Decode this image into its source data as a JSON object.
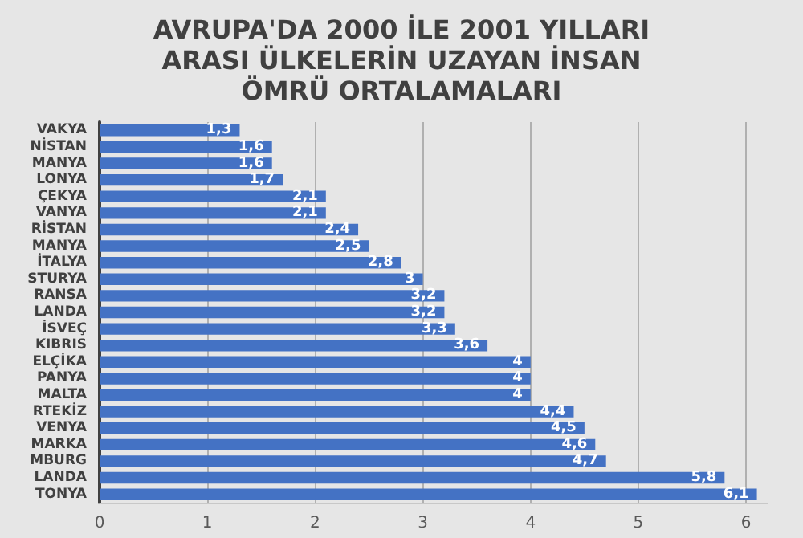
{
  "chart_data": {
    "type": "bar",
    "orientation": "horizontal",
    "title": "AVRUPA'DA 2000 İLE 2001 YILLARI\nARASI ÜLKELERİN UZAYAN İNSAN\nÖMRÜ ORTALAMALARI",
    "categories": [
      "VAKYA",
      "NİSTAN",
      "MANYA",
      "LONYA",
      "ÇEKYA",
      "VANYA",
      "RİSTAN",
      "MANYA",
      "İTALYA",
      "STURYA",
      "RANSA",
      "LANDA",
      "İSVEÇ",
      "KIBRIS",
      "ELÇİKA",
      "PANYA",
      "MALTA",
      "RTEKİZ",
      "VENYA",
      "MARKA",
      "MBURG",
      "LANDA",
      "TONYA"
    ],
    "values": [
      1.3,
      1.6,
      1.6,
      1.7,
      2.1,
      2.1,
      2.4,
      2.5,
      2.8,
      3,
      3.2,
      3.2,
      3.3,
      3.6,
      4,
      4,
      4,
      4.4,
      4.5,
      4.6,
      4.7,
      5.8,
      6.1
    ],
    "value_labels": [
      "1,3",
      "1,6",
      "1,6",
      "1,7",
      "2,1",
      "2,1",
      "2,4",
      "2,5",
      "2,8",
      "3",
      "3,2",
      "3,2",
      "3,3",
      "3,6",
      "4",
      "4",
      "4",
      "4,4",
      "4,5",
      "4,6",
      "4,7",
      "5,8",
      "6,1"
    ],
    "color": "#4472c4",
    "xlim": [
      0,
      6.2
    ],
    "xticks": [
      0,
      1,
      2,
      3,
      4,
      5,
      6
    ],
    "grid": "x"
  }
}
